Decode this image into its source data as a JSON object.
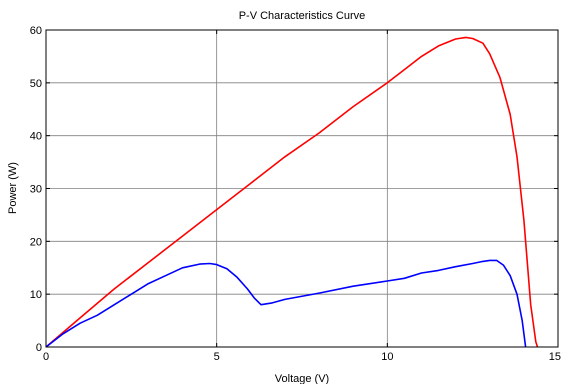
{
  "chart_data": {
    "type": "line",
    "title": "P-V Characteristics Curve",
    "xlabel": "Voltage (V)",
    "ylabel": "Power (W)",
    "xlim": [
      0,
      15
    ],
    "ylim": [
      0,
      60
    ],
    "xticks": [
      0,
      5,
      10,
      15
    ],
    "yticks": [
      0,
      10,
      20,
      30,
      40,
      50,
      60
    ],
    "grid": true,
    "series": [
      {
        "color": "#ff0000",
        "x": [
          0,
          1,
          2,
          3,
          4,
          5,
          6,
          7,
          8,
          9,
          10,
          10.5,
          11,
          11.5,
          12,
          12.3,
          12.5,
          12.8,
          13.0,
          13.3,
          13.6,
          13.8,
          14.0,
          14.2,
          14.35,
          14.4
        ],
        "y": [
          0,
          5.5,
          11,
          16,
          21,
          26,
          31,
          36,
          40.5,
          45.5,
          50,
          52.5,
          55,
          57,
          58.3,
          58.6,
          58.4,
          57.5,
          55.5,
          51,
          44,
          36,
          24,
          8,
          1,
          0
        ]
      },
      {
        "color": "#0000ff",
        "x": [
          0,
          0.5,
          1,
          1.5,
          2,
          2.5,
          3,
          3.5,
          4,
          4.5,
          4.8,
          5.0,
          5.3,
          5.6,
          5.9,
          6.1,
          6.3,
          6.6,
          7,
          8,
          9,
          10,
          10.5,
          11,
          11.5,
          12,
          12.5,
          12.8,
          13.0,
          13.2,
          13.4,
          13.6,
          13.8,
          13.95,
          14.05
        ],
        "y": [
          0,
          2.5,
          4.5,
          6,
          8,
          10,
          12,
          13.5,
          15,
          15.7,
          15.8,
          15.6,
          14.8,
          13.2,
          11,
          9.3,
          8,
          8.3,
          9,
          10.2,
          11.5,
          12.5,
          13,
          14,
          14.5,
          15.2,
          15.8,
          16.2,
          16.4,
          16.4,
          15.5,
          13.5,
          10,
          5,
          0
        ]
      }
    ]
  }
}
